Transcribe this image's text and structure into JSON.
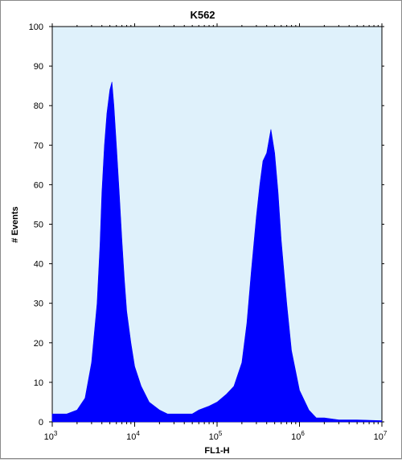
{
  "chart_data": {
    "type": "area",
    "title": "K562",
    "xlabel": "FL1-H",
    "ylabel": "# Events",
    "xscale": "log",
    "xlim": [
      1000,
      10000000
    ],
    "ylim": [
      0,
      100
    ],
    "yticks": [
      "0",
      "10",
      "20",
      "30",
      "40",
      "50",
      "60",
      "70",
      "80",
      "90",
      "100"
    ],
    "xticks": [
      {
        "base": "10",
        "exp": "3"
      },
      {
        "base": "10",
        "exp": "4"
      },
      {
        "base": "10",
        "exp": "5"
      },
      {
        "base": "10",
        "exp": "6"
      },
      {
        "base": "10",
        "exp": "7"
      }
    ],
    "grid": false,
    "fill_color": "#0000ff",
    "plot_background": "#dff1fb",
    "series": [
      {
        "x": [
          1000,
          1500,
          2000,
          2500,
          3000,
          3500,
          3800,
          4000,
          4300,
          4600,
          5000,
          5300,
          5600,
          6000,
          6500,
          7000,
          7500,
          8000,
          9000,
          10000,
          12000,
          15000,
          20000,
          25000,
          30000,
          40000,
          50000,
          60000,
          80000,
          100000,
          130000,
          160000,
          200000,
          230000,
          260000,
          300000,
          330000,
          360000,
          400000,
          450000,
          500000,
          550000,
          600000,
          700000,
          800000,
          1000000,
          1300000,
          1600000,
          2000000,
          3000000,
          5000000,
          10000000
        ],
        "y": [
          2,
          2,
          3,
          6,
          15,
          30,
          45,
          58,
          70,
          78,
          84,
          86,
          80,
          70,
          58,
          46,
          36,
          28,
          20,
          14,
          9,
          5,
          3,
          2,
          2,
          2,
          2,
          3,
          4,
          5,
          7,
          9,
          15,
          25,
          38,
          52,
          60,
          66,
          68,
          74,
          68,
          58,
          46,
          30,
          18,
          8,
          3,
          1,
          1,
          0.5,
          0.5,
          0.3
        ]
      }
    ]
  }
}
